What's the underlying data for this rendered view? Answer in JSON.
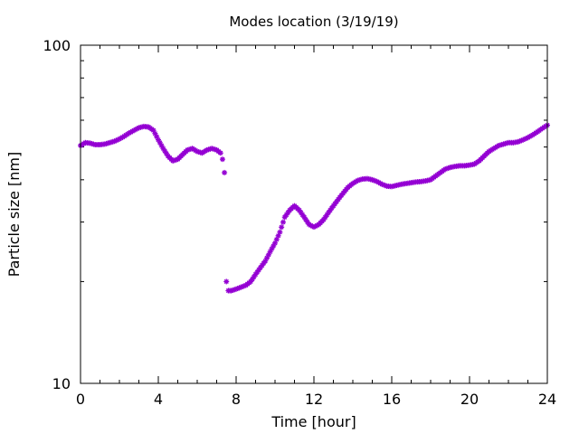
{
  "chart_data": {
    "type": "scatter",
    "title": "Modes location (3/19/19)",
    "xlabel": "Time [hour]",
    "ylabel": "Particle size [nm]",
    "xlim": [
      0,
      24
    ],
    "ylim": [
      10,
      100
    ],
    "yscale": "log",
    "grid": false,
    "marker_color": "#9400d3",
    "xticks": [
      0,
      4,
      8,
      12,
      16,
      20,
      24
    ],
    "xtick_labels": [
      "0",
      "4",
      "8",
      "12",
      "16",
      "20",
      "24"
    ],
    "yticks": [
      10,
      100
    ],
    "ytick_labels": [
      "10",
      "100"
    ],
    "series": [
      {
        "x": [
          0.0,
          0.25,
          0.5,
          0.75,
          1.0,
          1.25,
          1.5,
          1.75,
          2.0,
          2.25,
          2.5,
          2.75,
          3.0,
          3.25,
          3.5,
          3.75,
          4.0,
          4.25,
          4.5,
          4.75,
          5.0,
          5.25,
          5.5,
          5.75,
          6.0,
          6.25,
          6.5,
          6.75,
          7.0,
          7.2,
          7.3,
          7.4,
          7.5,
          7.6,
          7.75,
          8.0,
          8.5,
          8.75,
          9.0,
          9.25,
          9.5,
          9.75,
          10.0,
          10.25,
          10.5,
          10.75,
          11.0,
          11.25,
          11.5,
          11.75,
          12.0,
          12.25,
          12.5,
          12.75,
          13.0,
          13.25,
          13.5,
          13.75,
          14.0,
          14.25,
          14.5,
          14.75,
          15.0,
          15.25,
          15.5,
          15.75,
          16.0,
          16.25,
          16.5,
          16.75,
          17.0,
          17.25,
          17.5,
          17.75,
          18.0,
          18.25,
          18.5,
          18.75,
          19.0,
          19.25,
          19.5,
          19.75,
          20.0,
          20.25,
          20.5,
          20.75,
          21.0,
          21.25,
          21.5,
          21.75,
          22.0,
          22.25,
          22.5,
          22.75,
          23.0,
          23.25,
          23.5,
          23.75,
          24.0
        ],
        "y": [
          50.5,
          51.5,
          51.3,
          50.8,
          50.8,
          51.0,
          51.5,
          52.0,
          52.8,
          53.8,
          55.0,
          56.0,
          57.0,
          57.5,
          57.3,
          56.0,
          52.5,
          49.5,
          47.0,
          45.5,
          46.0,
          47.5,
          49.0,
          49.5,
          48.5,
          48.0,
          49.0,
          49.5,
          49.0,
          48.0,
          46.0,
          42.0,
          20.0,
          18.8,
          18.8,
          19.0,
          19.5,
          20.0,
          21.0,
          22.0,
          23.0,
          24.5,
          26.0,
          28.0,
          31.0,
          32.5,
          33.5,
          32.5,
          31.0,
          29.5,
          29.0,
          29.5,
          30.5,
          32.0,
          33.5,
          35.0,
          36.5,
          38.0,
          39.0,
          39.8,
          40.2,
          40.3,
          40.0,
          39.5,
          38.8,
          38.3,
          38.2,
          38.5,
          38.8,
          39.0,
          39.2,
          39.4,
          39.5,
          39.7,
          40.0,
          41.0,
          42.0,
          43.0,
          43.5,
          43.8,
          44.0,
          44.0,
          44.2,
          44.5,
          45.5,
          47.0,
          48.5,
          49.5,
          50.5,
          51.0,
          51.5,
          51.5,
          51.8,
          52.5,
          53.3,
          54.3,
          55.5,
          56.8,
          58.0
        ]
      }
    ]
  }
}
